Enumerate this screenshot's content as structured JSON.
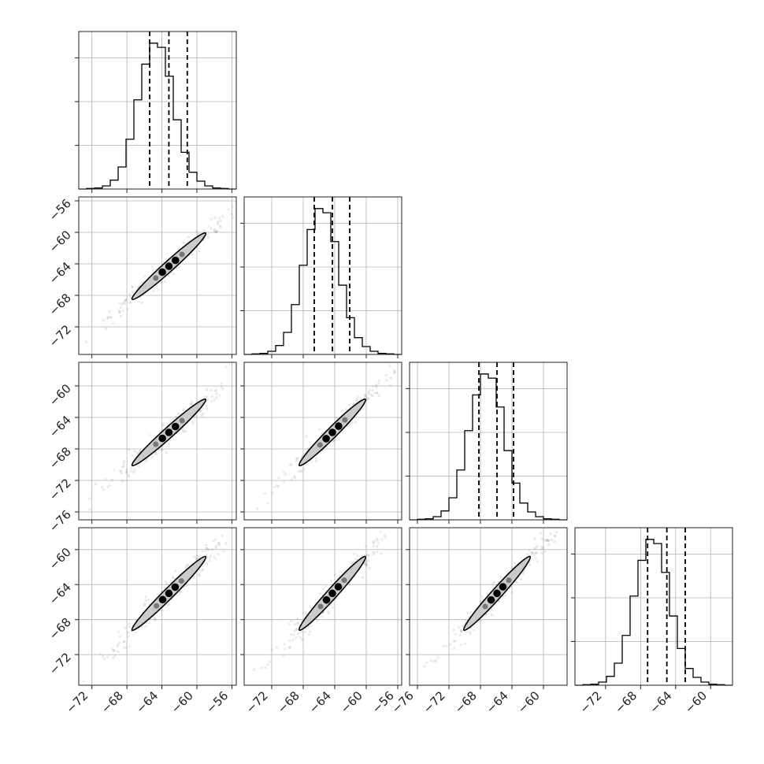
{
  "figure": {
    "type": "corner-plot",
    "panel_count": 10
  },
  "chart_data": {
    "type": "corner",
    "parameters": [
      {
        "axis_range": [
          -73.5,
          -55.5
        ],
        "ticks": [
          -72,
          -68,
          -64,
          -60,
          -56
        ],
        "tick_labels": [
          "−72",
          "−68",
          "−64",
          "−60",
          "−56"
        ],
        "histogram": {
          "bin_edges": [
            -73.5,
            -72.6,
            -71.7,
            -70.8,
            -69.9,
            -69.0,
            -68.1,
            -67.2,
            -66.3,
            -65.4,
            -64.5,
            -63.6,
            -62.7,
            -61.8,
            -60.9,
            -60.0,
            -59.1,
            -58.2,
            -57.3,
            -56.4,
            -55.5
          ],
          "counts": [
            0,
            1,
            2,
            6,
            17,
            42,
            95,
            170,
            238,
            278,
            270,
            215,
            132,
            70,
            32,
            15,
            6,
            2,
            1,
            0
          ]
        },
        "quantiles": [
          -65.4,
          -63.2,
          -61.1
        ]
      },
      {
        "axis_range": [
          -75.5,
          -55.5
        ],
        "ticks": [
          -72,
          -68,
          -64,
          -60,
          -56
        ],
        "tick_labels": [
          "−72",
          "−68",
          "−64",
          "−60",
          "−56"
        ],
        "histogram": {
          "bin_edges": [
            -75.5,
            -74.5,
            -73.5,
            -72.5,
            -71.5,
            -70.5,
            -69.5,
            -68.5,
            -67.5,
            -66.5,
            -65.5,
            -64.5,
            -63.5,
            -62.5,
            -61.5,
            -60.5,
            -59.5,
            -58.5,
            -57.5,
            -56.5,
            -55.5
          ],
          "counts": [
            0,
            1,
            2,
            6,
            17,
            42,
            95,
            170,
            238,
            278,
            270,
            215,
            132,
            70,
            32,
            15,
            6,
            2,
            1,
            0
          ]
        },
        "quantiles": [
          -66.6,
          -64.3,
          -62.1
        ]
      },
      {
        "axis_range": [
          -77.0,
          -57.0
        ],
        "ticks": [
          -76,
          -72,
          -68,
          -64,
          -60
        ],
        "tick_labels": [
          "−76",
          "−72",
          "−68",
          "−64",
          "−60"
        ],
        "histogram": {
          "bin_edges": [
            -77.0,
            -76.0,
            -75.0,
            -74.0,
            -73.0,
            -72.0,
            -71.0,
            -70.0,
            -69.0,
            -68.0,
            -67.0,
            -66.0,
            -65.0,
            -64.0,
            -63.0,
            -62.0,
            -61.0,
            -60.0,
            -59.0,
            -58.0,
            -57.0
          ],
          "counts": [
            0,
            1,
            2,
            6,
            17,
            42,
            95,
            170,
            238,
            278,
            270,
            215,
            132,
            70,
            32,
            15,
            6,
            2,
            1,
            0
          ]
        },
        "quantiles": [
          -68.2,
          -65.9,
          -63.8
        ]
      },
      {
        "axis_range": [
          -75.5,
          -57.5
        ],
        "ticks": [
          -72,
          -68,
          -64,
          -60
        ],
        "tick_labels": [
          "−72",
          "−68",
          "−64",
          "−60"
        ],
        "histogram": {
          "bin_edges": [
            -75.5,
            -74.6,
            -73.7,
            -72.8,
            -71.9,
            -71.0,
            -70.1,
            -69.2,
            -68.3,
            -67.4,
            -66.5,
            -65.6,
            -64.7,
            -63.8,
            -62.9,
            -62.0,
            -61.1,
            -60.2,
            -59.3,
            -58.4,
            -57.5
          ],
          "counts": [
            0,
            1,
            2,
            6,
            17,
            42,
            95,
            170,
            238,
            278,
            270,
            215,
            132,
            70,
            32,
            15,
            6,
            2,
            1,
            0
          ]
        },
        "quantiles": [
          -67.2,
          -65.0,
          -62.9
        ]
      }
    ],
    "pair_panels": [
      {
        "x_param": 0,
        "y_param": 1,
        "x_range": [
          -73.5,
          -55.5
        ],
        "y_range": [
          -75.5,
          -55.5
        ],
        "center": [
          -63.2,
          -64.3
        ],
        "slope": 1.0
      },
      {
        "x_param": 0,
        "y_param": 2,
        "x_range": [
          -73.5,
          -55.5
        ],
        "y_range": [
          -77.0,
          -57.0
        ],
        "center": [
          -63.2,
          -65.9
        ],
        "slope": 1.0
      },
      {
        "x_param": 1,
        "y_param": 2,
        "x_range": [
          -75.5,
          -55.5
        ],
        "y_range": [
          -77.0,
          -57.0
        ],
        "center": [
          -64.3,
          -65.9
        ],
        "slope": 1.0
      },
      {
        "x_param": 0,
        "y_param": 3,
        "x_range": [
          -73.5,
          -55.5
        ],
        "y_range": [
          -75.5,
          -57.5
        ],
        "center": [
          -63.2,
          -65.0
        ],
        "slope": 1.0
      },
      {
        "x_param": 1,
        "y_param": 3,
        "x_range": [
          -75.5,
          -55.5
        ],
        "y_range": [
          -75.5,
          -57.5
        ],
        "center": [
          -64.3,
          -65.0
        ],
        "slope": 1.0
      },
      {
        "x_param": 2,
        "y_param": 3,
        "x_range": [
          -77.0,
          -57.0
        ],
        "y_range": [
          -75.5,
          -57.5
        ],
        "center": [
          -65.9,
          -65.0
        ],
        "slope": 1.0
      }
    ],
    "grid": true,
    "legend": "none",
    "title": "",
    "xlabel": "",
    "ylabel": ""
  }
}
